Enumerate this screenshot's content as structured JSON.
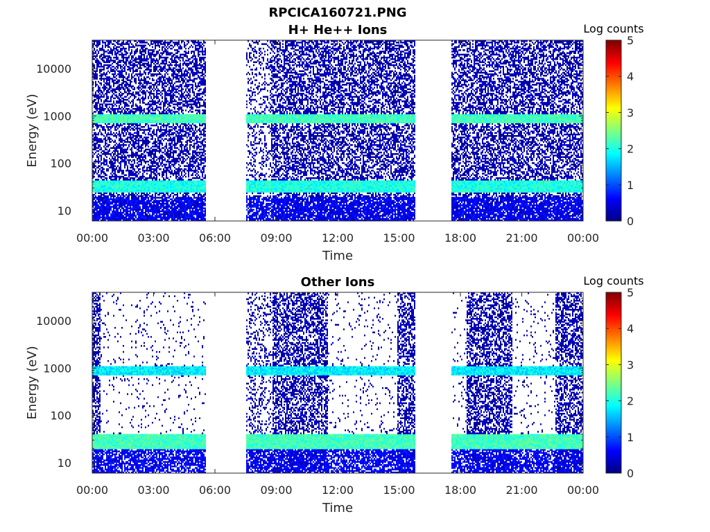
{
  "figure_title": "RPCICA160721.PNG",
  "colorbar_label": "Log counts",
  "colorbar_ticks": [
    "0",
    "1",
    "2",
    "3",
    "4",
    "5"
  ],
  "chart_data": [
    {
      "type": "heatmap",
      "title": "H+ He++ Ions",
      "xlabel": "Time",
      "ylabel": "Energy (eV)",
      "yscale": "log",
      "ylim": [
        6,
        40000
      ],
      "xlim": [
        "00:00",
        "24:00"
      ],
      "xticks": [
        "00:00",
        "03:00",
        "06:00",
        "09:00",
        "12:00",
        "15:00",
        "18:00",
        "21:00",
        "00:00"
      ],
      "yticks": [
        "10",
        "100",
        "1000",
        "10000"
      ],
      "clim": [
        0,
        5
      ],
      "colormap": "jet",
      "data_intervals_hours": [
        [
          0.0,
          5.5
        ],
        [
          7.5,
          15.75
        ],
        [
          17.5,
          24.0
        ]
      ],
      "bands": [
        {
          "energy_eV": [
            700,
            1100
          ],
          "log_counts": 2.2
        },
        {
          "energy_eV": [
            25,
            45
          ],
          "log_counts": 2.0
        }
      ]
    },
    {
      "type": "heatmap",
      "title": "Other Ions",
      "xlabel": "Time",
      "ylabel": "Energy (eV)",
      "yscale": "log",
      "ylim": [
        6,
        40000
      ],
      "xlim": [
        "00:00",
        "24:00"
      ],
      "xticks": [
        "00:00",
        "03:00",
        "06:00",
        "09:00",
        "12:00",
        "15:00",
        "18:00",
        "21:00",
        "00:00"
      ],
      "yticks": [
        "10",
        "100",
        "1000",
        "10000"
      ],
      "clim": [
        0,
        5
      ],
      "colormap": "jet",
      "data_intervals_hours": [
        [
          0.0,
          5.5
        ],
        [
          7.5,
          15.75
        ],
        [
          17.5,
          24.0
        ]
      ],
      "dense_intervals_hours": [
        [
          0.0,
          0.4
        ],
        [
          8.75,
          11.5
        ],
        [
          14.9,
          15.75
        ],
        [
          18.25,
          20.5
        ],
        [
          22.6,
          24.0
        ]
      ],
      "bands": [
        {
          "energy_eV": [
            700,
            1100
          ],
          "log_counts": 1.8
        },
        {
          "energy_eV": [
            20,
            40
          ],
          "log_counts": 2.2
        }
      ]
    }
  ]
}
